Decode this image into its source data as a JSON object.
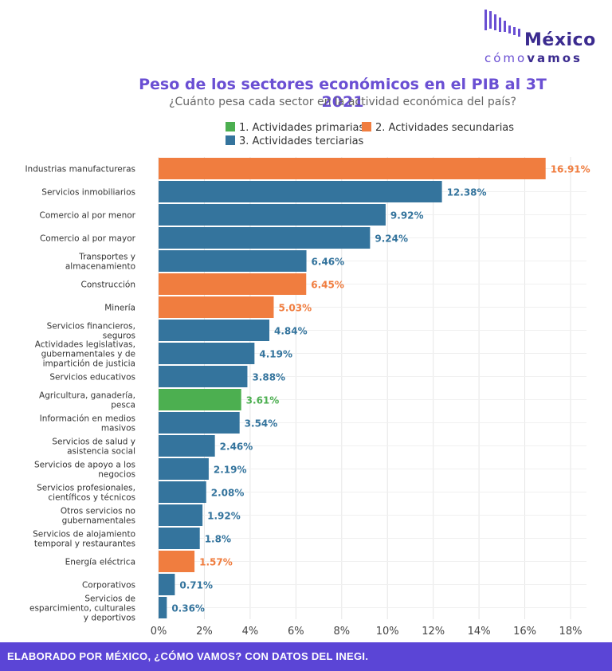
{
  "brand": {
    "name": "México",
    "sub_light": "cómo",
    "sub_bold": "vamos",
    "color": "#6a4fd3"
  },
  "chart_data": {
    "type": "bar",
    "orientation": "horizontal",
    "title": "Peso de los sectores económicos en el PIB al 3T 2021",
    "subtitle": "¿Cuánto pesa cada sector en la actividad económica del país?",
    "legend_position": "top",
    "grid": true,
    "xlim": [
      0,
      18
    ],
    "x_ticks": [
      "0%",
      "2%",
      "4%",
      "6%",
      "8%",
      "10%",
      "12%",
      "14%",
      "16%",
      "18%"
    ],
    "groups": [
      {
        "key": "primarias",
        "label": "1. Actividades primarias",
        "color": "#4caf50"
      },
      {
        "key": "secundarias",
        "label": "2. Actividades secundarias",
        "color": "#f07d3f"
      },
      {
        "key": "terciarias",
        "label": "3. Actividades terciarias",
        "color": "#34749d"
      }
    ],
    "bars": [
      {
        "label": [
          "Industrias manufactureras"
        ],
        "value": 16.91,
        "value_label": "16.91%",
        "group": "secundarias"
      },
      {
        "label": [
          "Servicios inmobiliarios"
        ],
        "value": 12.38,
        "value_label": "12.38%",
        "group": "terciarias"
      },
      {
        "label": [
          "Comercio al por menor"
        ],
        "value": 9.92,
        "value_label": "9.92%",
        "group": "terciarias"
      },
      {
        "label": [
          "Comercio al por mayor"
        ],
        "value": 9.24,
        "value_label": "9.24%",
        "group": "terciarias"
      },
      {
        "label": [
          "Transportes y",
          "almacenamiento"
        ],
        "value": 6.46,
        "value_label": "6.46%",
        "group": "terciarias"
      },
      {
        "label": [
          "Construcción"
        ],
        "value": 6.45,
        "value_label": "6.45%",
        "group": "secundarias"
      },
      {
        "label": [
          "Minería"
        ],
        "value": 5.03,
        "value_label": "5.03%",
        "group": "secundarias"
      },
      {
        "label": [
          "Servicios financieros,",
          "seguros"
        ],
        "value": 4.84,
        "value_label": "4.84%",
        "group": "terciarias"
      },
      {
        "label": [
          "Actividades legislativas,",
          "gubernamentales y de",
          "impartición de justicia"
        ],
        "value": 4.19,
        "value_label": "4.19%",
        "group": "terciarias"
      },
      {
        "label": [
          "Servicios educativos"
        ],
        "value": 3.88,
        "value_label": "3.88%",
        "group": "terciarias"
      },
      {
        "label": [
          "Agricultura, ganadería,",
          "pesca"
        ],
        "value": 3.61,
        "value_label": "3.61%",
        "group": "primarias"
      },
      {
        "label": [
          "Información en medios",
          "masivos"
        ],
        "value": 3.54,
        "value_label": "3.54%",
        "group": "terciarias"
      },
      {
        "label": [
          "Servicios de salud y",
          "asistencia social"
        ],
        "value": 2.46,
        "value_label": "2.46%",
        "group": "terciarias"
      },
      {
        "label": [
          "Servicios de apoyo a los",
          "negocios"
        ],
        "value": 2.19,
        "value_label": "2.19%",
        "group": "terciarias"
      },
      {
        "label": [
          "Servicios profesionales,",
          "científicos y técnicos"
        ],
        "value": 2.08,
        "value_label": "2.08%",
        "group": "terciarias"
      },
      {
        "label": [
          "Otros servicios no",
          "gubernamentales"
        ],
        "value": 1.92,
        "value_label": "1.92%",
        "group": "terciarias"
      },
      {
        "label": [
          "Servicios de alojamiento",
          "temporal y restaurantes"
        ],
        "value": 1.8,
        "value_label": "1.8%",
        "group": "terciarias"
      },
      {
        "label": [
          "Energía eléctrica"
        ],
        "value": 1.57,
        "value_label": "1.57%",
        "group": "secundarias"
      },
      {
        "label": [
          "Corporativos"
        ],
        "value": 0.71,
        "value_label": "0.71%",
        "group": "terciarias"
      },
      {
        "label": [
          "Servicios de",
          "esparcimiento, culturales",
          "y deportivos"
        ],
        "value": 0.36,
        "value_label": "0.36%",
        "group": "terciarias"
      }
    ]
  },
  "footer": {
    "text": "ELABORADO POR MÉXICO, ¿CÓMO VAMOS? CON DATOS DEL INEGI.",
    "color": "#5b45d6"
  }
}
